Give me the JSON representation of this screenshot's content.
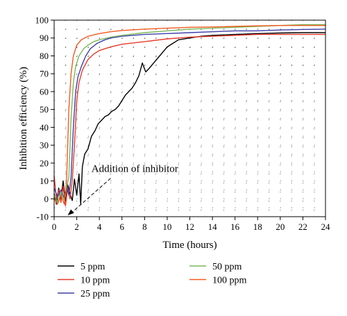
{
  "chart_data": {
    "type": "line",
    "xlabel": "Time (hours)",
    "ylabel": "Inhibition efficiency (%)",
    "xlim": [
      0,
      24
    ],
    "ylim": [
      -10,
      100
    ],
    "xticks": [
      "0",
      "2",
      "4",
      "6",
      "8",
      "10",
      "12",
      "14",
      "16",
      "18",
      "20",
      "22",
      "24"
    ],
    "yticks": [
      "-10",
      "0",
      "10",
      "20",
      "30",
      "40",
      "50",
      "60",
      "70",
      "80",
      "90",
      "100"
    ],
    "grid": "dotted",
    "legend_position": "bottom",
    "annotation": {
      "text": "Addition of inhibitor",
      "x": 1.2,
      "y": -10
    },
    "series": [
      {
        "name": "5 ppm",
        "color": "#000000",
        "points": [
          [
            0,
            3
          ],
          [
            0.2,
            -3
          ],
          [
            0.4,
            6
          ],
          [
            0.6,
            0
          ],
          [
            0.8,
            10
          ],
          [
            1.0,
            -2
          ],
          [
            1.2,
            8
          ],
          [
            1.4,
            3
          ],
          [
            1.6,
            -1
          ],
          [
            1.8,
            11
          ],
          [
            2.0,
            2
          ],
          [
            2.2,
            14
          ],
          [
            2.35,
            -3
          ],
          [
            2.5,
            18
          ],
          [
            2.7,
            25
          ],
          [
            3.0,
            28
          ],
          [
            3.3,
            35
          ],
          [
            3.6,
            38
          ],
          [
            3.9,
            42
          ],
          [
            4.2,
            44
          ],
          [
            4.5,
            46
          ],
          [
            4.8,
            47
          ],
          [
            5.1,
            49
          ],
          [
            5.4,
            50
          ],
          [
            5.7,
            52
          ],
          [
            6.0,
            55
          ],
          [
            6.3,
            58
          ],
          [
            6.6,
            60
          ],
          [
            6.9,
            62
          ],
          [
            7.2,
            65
          ],
          [
            7.5,
            69
          ],
          [
            7.8,
            76
          ],
          [
            8.1,
            71
          ],
          [
            8.4,
            73
          ],
          [
            8.8,
            76
          ],
          [
            9.2,
            79
          ],
          [
            9.6,
            82
          ],
          [
            10,
            85
          ],
          [
            10.5,
            87
          ],
          [
            11,
            89
          ],
          [
            12,
            90
          ],
          [
            13,
            91
          ],
          [
            14,
            91.5
          ],
          [
            16,
            92
          ],
          [
            18,
            92.5
          ],
          [
            20,
            92.8
          ],
          [
            22,
            93
          ],
          [
            24,
            93
          ]
        ]
      },
      {
        "name": "10 ppm",
        "color": "#e63a2b",
        "points": [
          [
            0,
            13
          ],
          [
            0.2,
            0
          ],
          [
            0.4,
            5
          ],
          [
            0.6,
            -2
          ],
          [
            0.8,
            7
          ],
          [
            1.0,
            -4
          ],
          [
            1.2,
            6
          ],
          [
            1.4,
            0
          ],
          [
            1.6,
            10
          ],
          [
            1.8,
            30
          ],
          [
            2.0,
            55
          ],
          [
            2.2,
            65
          ],
          [
            2.5,
            72
          ],
          [
            3,
            78
          ],
          [
            3.5,
            81
          ],
          [
            4,
            83
          ],
          [
            5,
            85
          ],
          [
            6,
            86.5
          ],
          [
            8,
            88
          ],
          [
            10,
            89.5
          ],
          [
            12,
            90.5
          ],
          [
            14,
            91
          ],
          [
            16,
            91.5
          ],
          [
            18,
            92
          ],
          [
            20,
            92
          ],
          [
            22,
            92
          ],
          [
            24,
            92
          ]
        ]
      },
      {
        "name": "25 ppm",
        "color": "#3f3fa8",
        "points": [
          [
            0,
            6
          ],
          [
            0.3,
            1
          ],
          [
            0.6,
            5
          ],
          [
            0.9,
            0
          ],
          [
            1.1,
            7
          ],
          [
            1.3,
            2
          ],
          [
            1.5,
            12
          ],
          [
            1.7,
            40
          ],
          [
            1.9,
            60
          ],
          [
            2.1,
            68
          ],
          [
            2.4,
            74
          ],
          [
            2.8,
            80
          ],
          [
            3.2,
            84
          ],
          [
            3.8,
            87
          ],
          [
            4.5,
            89
          ],
          [
            5,
            90
          ],
          [
            6,
            91
          ],
          [
            8,
            92
          ],
          [
            10,
            92.5
          ],
          [
            12,
            93
          ],
          [
            14,
            93.5
          ],
          [
            16,
            94
          ],
          [
            18,
            94
          ],
          [
            20,
            94.5
          ],
          [
            22,
            94.8
          ],
          [
            24,
            95
          ]
        ]
      },
      {
        "name": "50 ppm",
        "color": "#7ab85a",
        "points": [
          [
            0,
            2
          ],
          [
            0.3,
            -2
          ],
          [
            0.6,
            4
          ],
          [
            0.9,
            -1
          ],
          [
            1.1,
            6
          ],
          [
            1.3,
            12
          ],
          [
            1.5,
            45
          ],
          [
            1.7,
            65
          ],
          [
            1.9,
            74
          ],
          [
            2.2,
            80
          ],
          [
            2.6,
            84
          ],
          [
            3,
            86
          ],
          [
            3.5,
            88
          ],
          [
            4,
            89
          ],
          [
            5,
            90.5
          ],
          [
            6,
            91.5
          ],
          [
            8,
            93
          ],
          [
            10,
            94
          ],
          [
            12,
            95
          ],
          [
            14,
            95.5
          ],
          [
            16,
            96
          ],
          [
            18,
            96.5
          ],
          [
            20,
            97
          ],
          [
            22,
            97.5
          ],
          [
            24,
            97.5
          ]
        ]
      },
      {
        "name": "100 ppm",
        "color": "#f25a1f",
        "points": [
          [
            0,
            0
          ],
          [
            0.3,
            -3
          ],
          [
            0.6,
            2
          ],
          [
            0.9,
            -3
          ],
          [
            1.1,
            10
          ],
          [
            1.3,
            50
          ],
          [
            1.5,
            70
          ],
          [
            1.7,
            80
          ],
          [
            2.0,
            86
          ],
          [
            2.4,
            89
          ],
          [
            3,
            91
          ],
          [
            4,
            92.5
          ],
          [
            5,
            93.5
          ],
          [
            6,
            94.2
          ],
          [
            8,
            95
          ],
          [
            10,
            95.5
          ],
          [
            12,
            96
          ],
          [
            14,
            96.2
          ],
          [
            16,
            96.5
          ],
          [
            18,
            96.8
          ],
          [
            20,
            97
          ],
          [
            22,
            97
          ],
          [
            24,
            97
          ]
        ]
      }
    ]
  }
}
